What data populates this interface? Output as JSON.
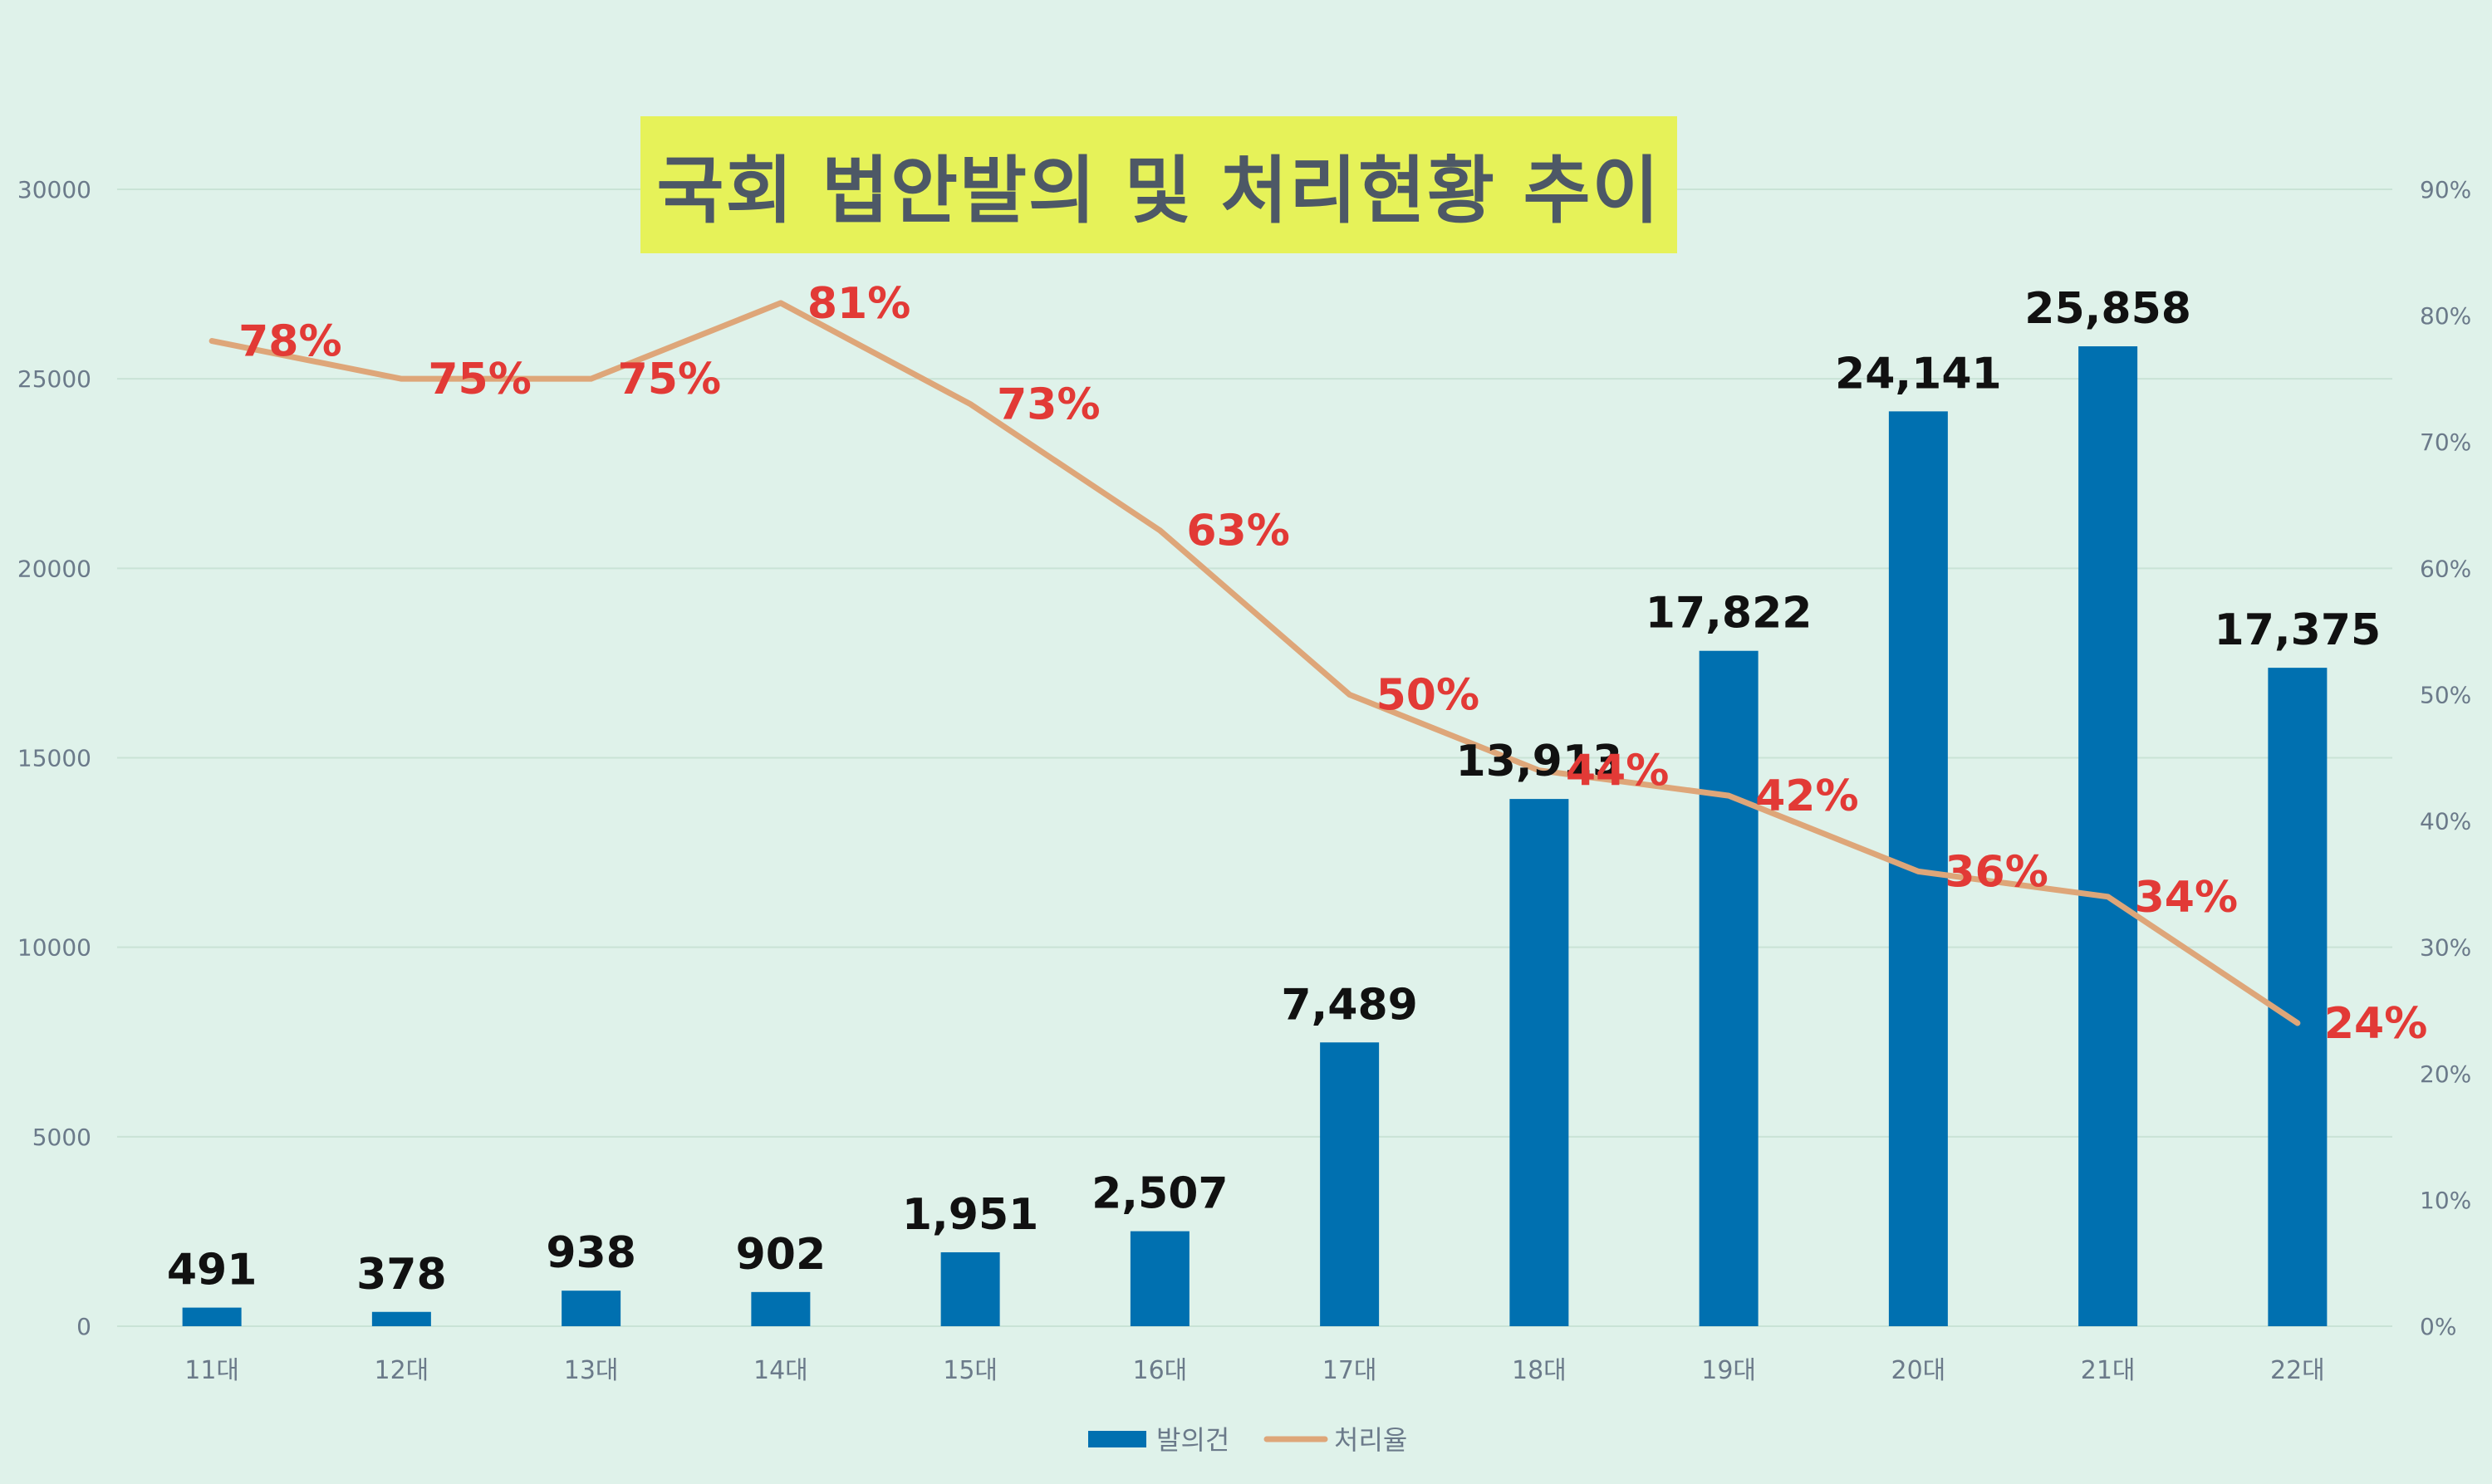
{
  "chart_data": {
    "type": "bar",
    "title": "국회 법안발의 및 처리현황 추이",
    "categories": [
      "11대",
      "12대",
      "13대",
      "14대",
      "15대",
      "16대",
      "17대",
      "18대",
      "19대",
      "20대",
      "21대",
      "22대"
    ],
    "series": [
      {
        "name": "발의건",
        "type": "bar",
        "axis": "left",
        "color": "#0070b0",
        "values": [
          491,
          378,
          938,
          902,
          1951,
          2507,
          7489,
          13913,
          17822,
          24141,
          25858,
          17375
        ],
        "labels": [
          "491",
          "378",
          "938",
          "902",
          "1,951",
          "2,507",
          "7,489",
          "13,913",
          "17,822",
          "24,141",
          "25,858",
          "17,375"
        ]
      },
      {
        "name": "처리율",
        "type": "line",
        "axis": "right",
        "color": "#dea679",
        "values": [
          78,
          75,
          75,
          81,
          73,
          63,
          50,
          44,
          42,
          36,
          34,
          24
        ],
        "labels": [
          "78%",
          "75%",
          "75%",
          "81%",
          "73%",
          "63%",
          "50%",
          "44%",
          "42%",
          "36%",
          "34%",
          "24%"
        ]
      }
    ],
    "y_left": {
      "min": 0,
      "max": 30000,
      "ticks": [
        "0",
        "5000",
        "10000",
        "15000",
        "20000",
        "25000",
        "30000"
      ]
    },
    "y_right": {
      "min": 0,
      "max": 90,
      "ticks": [
        "0%",
        "10%",
        "20%",
        "30%",
        "40%",
        "50%",
        "60%",
        "70%",
        "80%",
        "90%"
      ]
    },
    "legend": {
      "position": "bottom",
      "entries": [
        "발의건",
        "처리율"
      ]
    },
    "grid": true,
    "bar_label_color": "#111111",
    "line_label_color": "#e23a36",
    "axis_text_color": "#6b7a8a",
    "grid_color": "#c9e3d6"
  }
}
